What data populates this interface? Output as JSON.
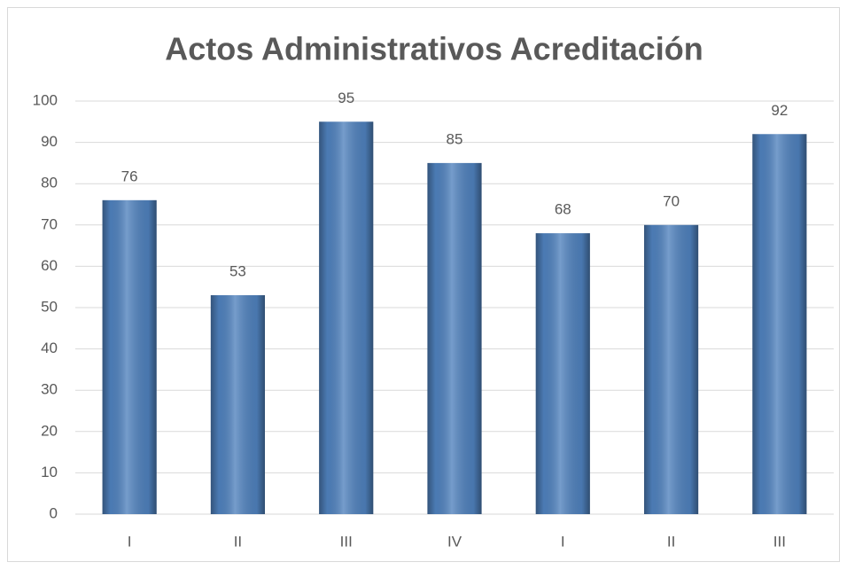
{
  "chart_data": {
    "type": "bar",
    "title": "Actos Administrativos Acreditación",
    "categories": [
      "I",
      "II",
      "III",
      "IV",
      "I",
      "II",
      "III"
    ],
    "values": [
      76,
      53,
      95,
      85,
      68,
      70,
      92
    ],
    "color": "#4f81bd",
    "ylim": [
      0,
      100
    ],
    "yticks": [
      0,
      10,
      20,
      30,
      40,
      50,
      60,
      70,
      80,
      90,
      100
    ],
    "grid": true
  }
}
